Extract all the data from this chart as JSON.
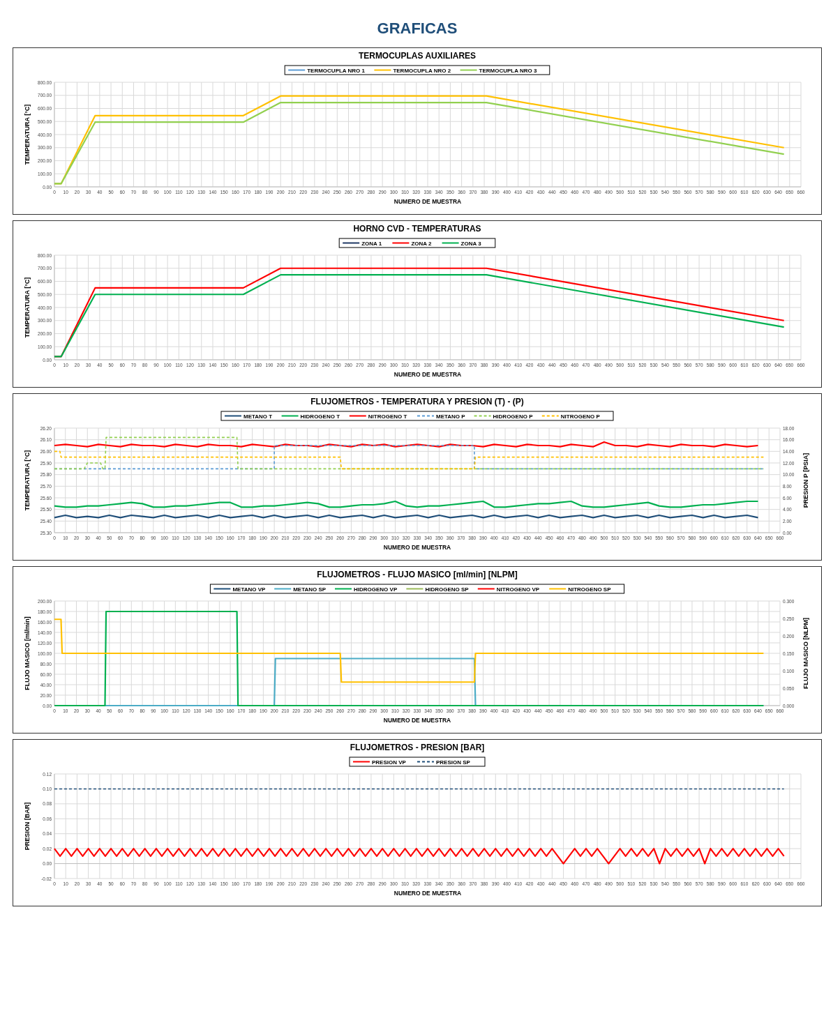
{
  "chart_data": [
    {
      "type": "line",
      "title": "TERMOCUPLAS AUXILIARES",
      "annotations": [
        "GRAFICAS"
      ],
      "xlabel": "NUMERO DE MUESTRA",
      "ylabel": "TEMPERATURA [°C]",
      "grid": true,
      "legend": "top",
      "xlim": [
        0,
        660
      ],
      "xticks": [
        0,
        10,
        20,
        30,
        40,
        50,
        60,
        70,
        80,
        90,
        100,
        110,
        120,
        130,
        140,
        150,
        160,
        170,
        180,
        190,
        200,
        210,
        220,
        230,
        240,
        250,
        260,
        270,
        280,
        290,
        300,
        310,
        320,
        330,
        340,
        350,
        360,
        370,
        380,
        390,
        400,
        410,
        420,
        430,
        440,
        450,
        460,
        470,
        480,
        490,
        500,
        510,
        520,
        530,
        540,
        550,
        560,
        570,
        580,
        590,
        600,
        610,
        620,
        630,
        640,
        650,
        660
      ],
      "ylim": [
        0,
        800
      ],
      "yticks": [
        {
          "value": 0,
          "label": "0.00"
        },
        {
          "value": 100,
          "label": "100.00"
        },
        {
          "value": 200,
          "label": "200.00"
        },
        {
          "value": 300,
          "label": "300.00"
        },
        {
          "value": 400,
          "label": "400.00"
        },
        {
          "value": 500,
          "label": "500.00"
        },
        {
          "value": 600,
          "label": "600.00"
        },
        {
          "value": 700,
          "label": "700.00"
        },
        {
          "value": 800,
          "label": "800.00"
        }
      ],
      "series": [
        {
          "name": "TERMOCUPLA NRO 1",
          "color": "#5b9bd5"
        },
        {
          "name": "TERMOCUPLA NRO 2",
          "color": "#ffc000",
          "x": [
            0,
            6,
            36,
            167,
            200,
            382,
            645
          ],
          "values": [
            25,
            25,
            545,
            545,
            695,
            695,
            300
          ]
        },
        {
          "name": "TERMOCUPLA NRO 3",
          "color": "#92d050",
          "x": [
            0,
            6,
            36,
            167,
            200,
            382,
            645
          ],
          "values": [
            25,
            25,
            495,
            495,
            645,
            645,
            250
          ]
        }
      ]
    },
    {
      "type": "line",
      "title": "HORNO CVD - TEMPERATURAS",
      "xlabel": "NUMERO DE MUESTRA",
      "ylabel": "TEMPERATURA [°C]",
      "grid": true,
      "legend": "top",
      "xlim": [
        0,
        660
      ],
      "xticks": [
        0,
        10,
        20,
        30,
        40,
        50,
        60,
        70,
        80,
        90,
        100,
        110,
        120,
        130,
        140,
        150,
        160,
        170,
        180,
        190,
        200,
        210,
        220,
        230,
        240,
        250,
        260,
        270,
        280,
        290,
        300,
        310,
        320,
        330,
        340,
        350,
        360,
        370,
        380,
        390,
        400,
        410,
        420,
        430,
        440,
        450,
        460,
        470,
        480,
        490,
        500,
        510,
        520,
        530,
        540,
        550,
        560,
        570,
        580,
        590,
        600,
        610,
        620,
        630,
        640,
        650,
        660
      ],
      "ylim": [
        0,
        800
      ],
      "yticks": [
        {
          "value": 0,
          "label": "0.00"
        },
        {
          "value": 100,
          "label": "100.00"
        },
        {
          "value": 200,
          "label": "200.00"
        },
        {
          "value": 300,
          "label": "300.00"
        },
        {
          "value": 400,
          "label": "400.00"
        },
        {
          "value": 500,
          "label": "500.00"
        },
        {
          "value": 600,
          "label": "600.00"
        },
        {
          "value": 700,
          "label": "700.00"
        },
        {
          "value": 800,
          "label": "800.00"
        }
      ],
      "series": [
        {
          "name": "ZONA 1",
          "color": "#1f3864"
        },
        {
          "name": "ZONA 2",
          "color": "#ff0000",
          "x": [
            0,
            6,
            36,
            167,
            200,
            382,
            645
          ],
          "values": [
            25,
            25,
            550,
            550,
            700,
            700,
            300
          ]
        },
        {
          "name": "ZONA 3",
          "color": "#00b050",
          "x": [
            0,
            6,
            36,
            167,
            200,
            382,
            645
          ],
          "values": [
            25,
            25,
            500,
            500,
            650,
            650,
            250
          ]
        }
      ]
    },
    {
      "type": "line",
      "title": "FLUJOMETROS - TEMPERATURA Y PRESION  (T) - (P)",
      "xlabel": "NUMERO DE MUESTRA",
      "ylabel": "TEMPERATURA [°C]",
      "y2label": "PRESION P [PSIA]",
      "grid": true,
      "legend": "top",
      "x": [
        0,
        10,
        20,
        30,
        40,
        50,
        60,
        70,
        80,
        90,
        100,
        110,
        120,
        130,
        140,
        150,
        160,
        170,
        180,
        190,
        200,
        210,
        220,
        230,
        240,
        250,
        260,
        270,
        280,
        290,
        300,
        310,
        320,
        330,
        340,
        350,
        360,
        370,
        380,
        390,
        400,
        410,
        420,
        430,
        440,
        450,
        460,
        470,
        480,
        490,
        500,
        510,
        520,
        530,
        540,
        550,
        560,
        570,
        580,
        590,
        600,
        610,
        620,
        630,
        640
      ],
      "xlim": [
        0,
        660
      ],
      "xticks": [
        0,
        10,
        20,
        30,
        40,
        50,
        60,
        70,
        80,
        90,
        100,
        110,
        120,
        130,
        140,
        150,
        160,
        170,
        180,
        190,
        200,
        210,
        220,
        230,
        240,
        250,
        260,
        270,
        280,
        290,
        300,
        310,
        320,
        330,
        340,
        350,
        360,
        370,
        380,
        390,
        400,
        410,
        420,
        430,
        440,
        450,
        460,
        470,
        480,
        490,
        500,
        510,
        520,
        530,
        540,
        550,
        560,
        570,
        580,
        590,
        600,
        610,
        620,
        630,
        640,
        650,
        660
      ],
      "ylim": [
        25.3,
        26.2
      ],
      "yticks": [
        {
          "value": 25.3,
          "label": "25.30"
        },
        {
          "value": 25.4,
          "label": "25.40"
        },
        {
          "value": 25.5,
          "label": "25.50"
        },
        {
          "value": 25.6,
          "label": "25.60"
        },
        {
          "value": 25.7,
          "label": "25.70"
        },
        {
          "value": 25.8,
          "label": "25.80"
        },
        {
          "value": 25.9,
          "label": "25.90"
        },
        {
          "value": 26.0,
          "label": "26.00"
        },
        {
          "value": 26.1,
          "label": "26.10"
        },
        {
          "value": 26.2,
          "label": "26.20"
        }
      ],
      "y2lim": [
        0,
        18
      ],
      "y2ticks": [
        {
          "value": 0,
          "label": "0.00"
        },
        {
          "value": 2,
          "label": "2.00"
        },
        {
          "value": 4,
          "label": "4.00"
        },
        {
          "value": 6,
          "label": "6.00"
        },
        {
          "value": 8,
          "label": "8.00"
        },
        {
          "value": 10,
          "label": "10.00"
        },
        {
          "value": 12,
          "label": "12.00"
        },
        {
          "value": 14,
          "label": "14.00"
        },
        {
          "value": 16,
          "label": "16.00"
        },
        {
          "value": 18,
          "label": "18.00"
        }
      ],
      "series": [
        {
          "name": "METANO T",
          "color": "#1f4e79",
          "values": [
            25.43,
            25.45,
            25.43,
            25.44,
            25.43,
            25.45,
            25.43,
            25.45,
            25.44,
            25.43,
            25.45,
            25.43,
            25.44,
            25.45,
            25.43,
            25.45,
            25.43,
            25.44,
            25.45,
            25.43,
            25.45,
            25.43,
            25.44,
            25.45,
            25.43,
            25.45,
            25.43,
            25.44,
            25.45,
            25.43,
            25.45,
            25.43,
            25.44,
            25.45,
            25.43,
            25.45,
            25.43,
            25.44,
            25.45,
            25.43,
            25.45,
            25.43,
            25.44,
            25.45,
            25.43,
            25.45,
            25.43,
            25.44,
            25.45,
            25.43,
            25.45,
            25.43,
            25.44,
            25.45,
            25.43,
            25.45,
            25.43,
            25.44,
            25.45,
            25.43,
            25.45,
            25.43,
            25.44,
            25.45,
            25.43
          ]
        },
        {
          "name": "HIDROGENO T",
          "color": "#00b050",
          "values": [
            25.53,
            25.52,
            25.52,
            25.53,
            25.53,
            25.54,
            25.55,
            25.56,
            25.55,
            25.52,
            25.52,
            25.53,
            25.53,
            25.54,
            25.55,
            25.56,
            25.56,
            25.52,
            25.52,
            25.53,
            25.53,
            25.54,
            25.55,
            25.56,
            25.55,
            25.52,
            25.52,
            25.53,
            25.54,
            25.54,
            25.55,
            25.57,
            25.53,
            25.52,
            25.53,
            25.53,
            25.54,
            25.55,
            25.56,
            25.57,
            25.52,
            25.52,
            25.53,
            25.54,
            25.55,
            25.55,
            25.56,
            25.57,
            25.53,
            25.52,
            25.52,
            25.53,
            25.54,
            25.55,
            25.56,
            25.53,
            25.52,
            25.52,
            25.53,
            25.54,
            25.54,
            25.55,
            25.56,
            25.57,
            25.57
          ]
        },
        {
          "name": "NITROGENO T",
          "color": "#ff0000",
          "values": [
            26.05,
            26.06,
            26.05,
            26.04,
            26.06,
            26.05,
            26.04,
            26.06,
            26.05,
            26.05,
            26.04,
            26.06,
            26.05,
            26.04,
            26.06,
            26.05,
            26.05,
            26.04,
            26.06,
            26.05,
            26.04,
            26.06,
            26.05,
            26.05,
            26.04,
            26.06,
            26.05,
            26.04,
            26.06,
            26.05,
            26.06,
            26.04,
            26.05,
            26.06,
            26.05,
            26.04,
            26.06,
            26.05,
            26.05,
            26.04,
            26.06,
            26.05,
            26.04,
            26.06,
            26.05,
            26.05,
            26.04,
            26.06,
            26.05,
            26.04,
            26.08,
            26.05,
            26.05,
            26.04,
            26.06,
            26.05,
            26.04,
            26.06,
            26.05,
            26.05,
            26.04,
            26.06,
            26.05,
            26.04,
            26.05
          ]
        },
        {
          "name": "METANO P",
          "color": "#5b9bd5",
          "axis": "y2",
          "line_style": "dashed",
          "x": [
            0,
            200,
            200,
            382,
            382,
            645
          ],
          "values": [
            11,
            11,
            15,
            15,
            11,
            11
          ]
        },
        {
          "name": "HIDROGENO P",
          "color": "#92d050",
          "axis": "y2",
          "line_style": "dashed",
          "x": [
            0,
            27,
            30,
            42,
            44,
            46,
            47,
            166,
            167,
            645
          ],
          "values": [
            11,
            11,
            12,
            12,
            11,
            11,
            16.4,
            16.4,
            11,
            11
          ]
        },
        {
          "name": "NITROGENO P",
          "color": "#ffc000",
          "axis": "y2",
          "line_style": "dashed",
          "x": [
            0,
            5,
            6,
            260,
            261,
            382,
            383,
            645
          ],
          "values": [
            14,
            14,
            13,
            13,
            11,
            11,
            13,
            13
          ]
        }
      ]
    },
    {
      "type": "line",
      "title": "FLUJOMETROS - FLUJO MASICO [ml/min]  [NLPM]",
      "xlabel": "NUMERO DE MUESTRA",
      "ylabel": "FLUJO MASICO [ml/min]",
      "y2label": "FLUJO MASICO [NLPM]",
      "grid": true,
      "legend": "top",
      "xlim": [
        0,
        660
      ],
      "xticks": [
        0,
        10,
        20,
        30,
        40,
        50,
        60,
        70,
        80,
        90,
        100,
        110,
        120,
        130,
        140,
        150,
        160,
        170,
        180,
        190,
        200,
        210,
        220,
        230,
        240,
        250,
        260,
        270,
        280,
        290,
        300,
        310,
        320,
        330,
        340,
        350,
        360,
        370,
        380,
        390,
        400,
        410,
        420,
        430,
        440,
        450,
        460,
        470,
        480,
        490,
        500,
        510,
        520,
        530,
        540,
        550,
        560,
        570,
        580,
        590,
        600,
        610,
        620,
        630,
        640,
        650,
        660
      ],
      "ylim": [
        0,
        200
      ],
      "yticks": [
        {
          "value": 0,
          "label": "0.00"
        },
        {
          "value": 20,
          "label": "20.00"
        },
        {
          "value": 40,
          "label": "40.00"
        },
        {
          "value": 60,
          "label": "60.00"
        },
        {
          "value": 80,
          "label": "80.00"
        },
        {
          "value": 100,
          "label": "100.00"
        },
        {
          "value": 120,
          "label": "120.00"
        },
        {
          "value": 140,
          "label": "140.00"
        },
        {
          "value": 160,
          "label": "160.00"
        },
        {
          "value": 180,
          "label": "180.00"
        },
        {
          "value": 200,
          "label": "200.00"
        }
      ],
      "y2lim": [
        0,
        0.3
      ],
      "y2ticks": [
        {
          "value": 0,
          "label": "0.000"
        },
        {
          "value": 0.05,
          "label": "0.050"
        },
        {
          "value": 0.1,
          "label": "0.100"
        },
        {
          "value": 0.15,
          "label": "0.150"
        },
        {
          "value": 0.2,
          "label": "0.200"
        },
        {
          "value": 0.25,
          "label": "0.250"
        },
        {
          "value": 0.3,
          "label": "0.300"
        }
      ],
      "series": [
        {
          "name": "METANO VP",
          "color": "#1f4e79"
        },
        {
          "name": "METANO SP",
          "color": "#4bacc6",
          "x": [
            0,
            200,
            201,
            382,
            383,
            645
          ],
          "values": [
            0,
            0,
            90,
            90,
            0,
            0
          ]
        },
        {
          "name": "HIDROGENO VP",
          "color": "#00b050",
          "x": [
            0,
            46,
            47,
            166,
            167,
            645
          ],
          "values": [
            0,
            0,
            180,
            180,
            0,
            0
          ]
        },
        {
          "name": "HIDROGENO SP",
          "color": "#9bbb59"
        },
        {
          "name": "NITROGENO VP",
          "color": "#ff0000"
        },
        {
          "name": "NITROGENO SP",
          "color": "#ffc000",
          "x": [
            0,
            6,
            7,
            260,
            261,
            382,
            383,
            645
          ],
          "values": [
            165,
            165,
            100,
            100,
            45,
            45,
            100,
            100
          ]
        }
      ]
    },
    {
      "type": "line",
      "title": "FLUJOMETROS - PRESION [BAR]",
      "xlabel": "NUMERO DE MUESTRA",
      "ylabel": "PRESION [BAR]",
      "grid": true,
      "legend": "top",
      "x": [
        0,
        5,
        10,
        15,
        20,
        25,
        30,
        35,
        40,
        45,
        50,
        55,
        60,
        65,
        70,
        75,
        80,
        85,
        90,
        95,
        100,
        105,
        110,
        115,
        120,
        125,
        130,
        135,
        140,
        145,
        150,
        155,
        160,
        165,
        170,
        175,
        180,
        185,
        190,
        195,
        200,
        205,
        210,
        215,
        220,
        225,
        230,
        235,
        240,
        245,
        250,
        255,
        260,
        265,
        270,
        275,
        280,
        285,
        290,
        295,
        300,
        305,
        310,
        315,
        320,
        325,
        330,
        335,
        340,
        345,
        350,
        355,
        360,
        365,
        370,
        375,
        380,
        385,
        390,
        395,
        400,
        405,
        410,
        415,
        420,
        425,
        430,
        435,
        440,
        445,
        450,
        455,
        460,
        465,
        470,
        475,
        480,
        485,
        490,
        495,
        500,
        505,
        510,
        515,
        520,
        525,
        530,
        535,
        540,
        545,
        550,
        555,
        560,
        565,
        570,
        575,
        580,
        585,
        590,
        595,
        600,
        605,
        610,
        615,
        620,
        625,
        630,
        635,
        640,
        645
      ],
      "xlim": [
        0,
        660
      ],
      "xticks": [
        0,
        10,
        20,
        30,
        40,
        50,
        60,
        70,
        80,
        90,
        100,
        110,
        120,
        130,
        140,
        150,
        160,
        170,
        180,
        190,
        200,
        210,
        220,
        230,
        240,
        250,
        260,
        270,
        280,
        290,
        300,
        310,
        320,
        330,
        340,
        350,
        360,
        370,
        380,
        390,
        400,
        410,
        420,
        430,
        440,
        450,
        460,
        470,
        480,
        490,
        500,
        510,
        520,
        530,
        540,
        550,
        560,
        570,
        580,
        590,
        600,
        610,
        620,
        630,
        640,
        650,
        660
      ],
      "ylim": [
        -0.02,
        0.12
      ],
      "yticks": [
        {
          "value": -0.02,
          "label": "-0.02"
        },
        {
          "value": 0,
          "label": "0.00"
        },
        {
          "value": 0.02,
          "label": "0.02"
        },
        {
          "value": 0.04,
          "label": "0.04"
        },
        {
          "value": 0.06,
          "label": "0.06"
        },
        {
          "value": 0.08,
          "label": "0.08"
        },
        {
          "value": 0.1,
          "label": "0.10"
        },
        {
          "value": 0.12,
          "label": "0.12"
        }
      ],
      "series": [
        {
          "name": "PRESION VP",
          "color": "#ff0000",
          "values": [
            0.02,
            0.01,
            0.02,
            0.01,
            0.02,
            0.01,
            0.02,
            0.01,
            0.02,
            0.01,
            0.02,
            0.01,
            0.02,
            0.01,
            0.02,
            0.01,
            0.02,
            0.01,
            0.02,
            0.01,
            0.02,
            0.01,
            0.02,
            0.01,
            0.02,
            0.01,
            0.02,
            0.01,
            0.02,
            0.01,
            0.02,
            0.01,
            0.02,
            0.01,
            0.02,
            0.01,
            0.02,
            0.01,
            0.02,
            0.01,
            0.02,
            0.01,
            0.02,
            0.01,
            0.02,
            0.01,
            0.02,
            0.01,
            0.02,
            0.01,
            0.02,
            0.01,
            0.02,
            0.01,
            0.02,
            0.01,
            0.02,
            0.01,
            0.02,
            0.01,
            0.02,
            0.01,
            0.02,
            0.01,
            0.02,
            0.01,
            0.02,
            0.01,
            0.02,
            0.01,
            0.02,
            0.01,
            0.02,
            0.01,
            0.02,
            0.01,
            0.02,
            0.01,
            0.02,
            0.01,
            0.02,
            0.01,
            0.02,
            0.01,
            0.02,
            0.01,
            0.02,
            0.01,
            0.02,
            0.01,
            0,
            0.01,
            0.02,
            0.01,
            0.02,
            0.01,
            0.02,
            0.01,
            0,
            0.01,
            0.02,
            0.01,
            0.02,
            0.01,
            0.02,
            0.01,
            0.02,
            0,
            0.02,
            0.01,
            0.02,
            0.01,
            0.02,
            0.01,
            0.02,
            0,
            0.02,
            0.01,
            0.02,
            0.01,
            0.02,
            0.01,
            0.02,
            0.01,
            0.02,
            0.01,
            0.02,
            0.01,
            0.02,
            0.01
          ]
        },
        {
          "name": "PRESION SP",
          "color": "#1f4e79",
          "line_style": "dashed",
          "values": [
            0.1,
            0.1,
            0.1,
            0.1,
            0.1,
            0.1,
            0.1,
            0.1,
            0.1,
            0.1,
            0.1,
            0.1,
            0.1,
            0.1,
            0.1,
            0.1,
            0.1,
            0.1,
            0.1,
            0.1,
            0.1,
            0.1,
            0.1,
            0.1,
            0.1,
            0.1,
            0.1,
            0.1,
            0.1,
            0.1,
            0.1,
            0.1,
            0.1,
            0.1,
            0.1,
            0.1,
            0.1,
            0.1,
            0.1,
            0.1,
            0.1,
            0.1,
            0.1,
            0.1,
            0.1,
            0.1,
            0.1,
            0.1,
            0.1,
            0.1,
            0.1,
            0.1,
            0.1,
            0.1,
            0.1,
            0.1,
            0.1,
            0.1,
            0.1,
            0.1,
            0.1,
            0.1,
            0.1,
            0.1,
            0.1,
            0.1,
            0.1,
            0.1,
            0.1,
            0.1,
            0.1,
            0.1,
            0.1,
            0.1,
            0.1,
            0.1,
            0.1,
            0.1,
            0.1,
            0.1,
            0.1,
            0.1,
            0.1,
            0.1,
            0.1,
            0.1,
            0.1,
            0.1,
            0.1,
            0.1,
            0.1,
            0.1,
            0.1,
            0.1,
            0.1,
            0.1,
            0.1,
            0.1,
            0.1,
            0.1,
            0.1,
            0.1,
            0.1,
            0.1,
            0.1,
            0.1,
            0.1,
            0.1,
            0.1,
            0.1,
            0.1,
            0.1,
            0.1,
            0.1,
            0.1,
            0.1,
            0.1,
            0.1,
            0.1,
            0.1,
            0.1,
            0.1,
            0.1,
            0.1,
            0.1,
            0.1,
            0.1,
            0.1,
            0.1,
            0.1
          ]
        }
      ]
    }
  ]
}
